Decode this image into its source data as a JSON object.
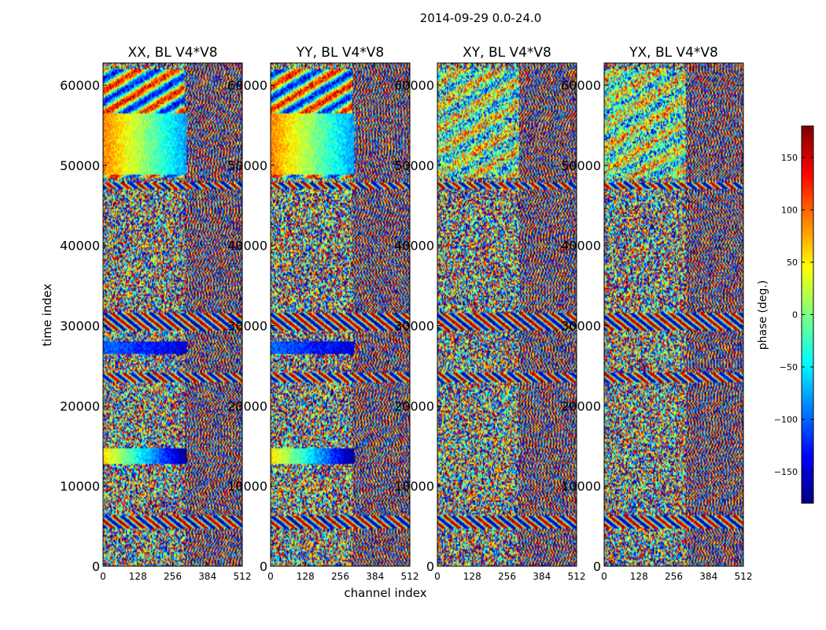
{
  "chart_data": {
    "type": "heatmap",
    "suptitle": "2014-09-29 0.0-24.0",
    "xlabel": "channel index",
    "ylabel": "time index",
    "xlim": [
      0,
      512
    ],
    "ylim": [
      0,
      62760
    ],
    "xticks": [
      0,
      128,
      256,
      384,
      512
    ],
    "yticks": [
      0,
      10000,
      20000,
      30000,
      40000,
      50000,
      60000
    ],
    "colormap": "jet",
    "colorbar": {
      "label": "phase (deg.)",
      "range": [
        -180,
        180
      ],
      "ticks": [
        -150,
        -100,
        -50,
        0,
        50,
        100,
        150
      ],
      "tick_labels": [
        "−150",
        "−100",
        "−50",
        "0",
        "50",
        "100",
        "150"
      ]
    },
    "panels": [
      {
        "title": "XX, BL V4*V8",
        "pol": "XX"
      },
      {
        "title": "YY, BL V4*V8",
        "pol": "YY"
      },
      {
        "title": "XY, BL V4*V8",
        "pol": "XY"
      },
      {
        "title": "YX, BL V4*V8",
        "pol": "YX"
      }
    ],
    "features": {
      "fringe_bands": [
        [
          29500,
          31500
        ],
        [
          4800,
          6200
        ],
        [
          23000,
          24200
        ],
        [
          47000,
          47800
        ]
      ],
      "structured_block": [
        48500,
        62000
      ],
      "copol_bands": [
        {
          "t": [
            12800,
            14800
          ],
          "phase": [
            60,
            -180
          ]
        },
        {
          "t": [
            26500,
            28000
          ],
          "phase": [
            -100,
            -150
          ]
        },
        {
          "t": [
            48800,
            56500
          ],
          "phase": [
            90,
            -80
          ]
        }
      ],
      "dense_channel_start": 300
    }
  }
}
